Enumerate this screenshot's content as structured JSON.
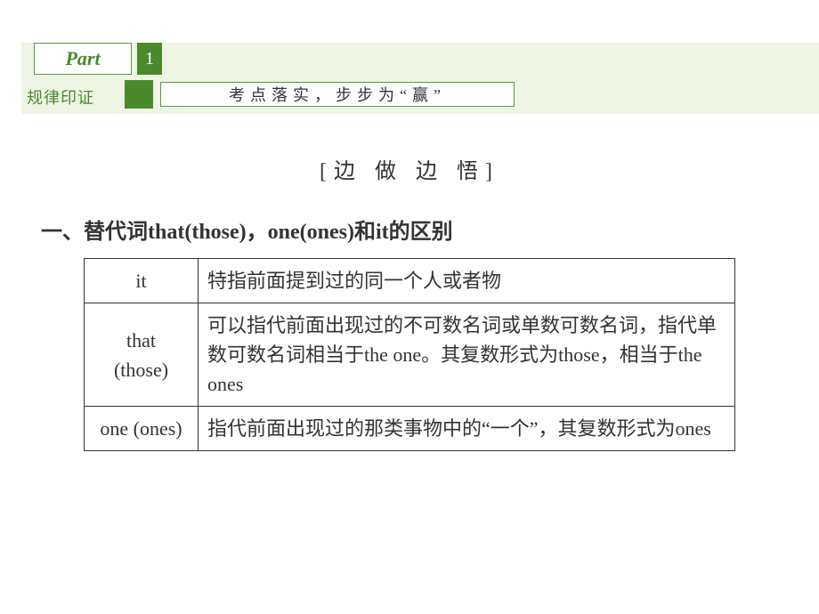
{
  "header": {
    "part_label": "Part",
    "part_number": "1",
    "sub_label": "规律印证",
    "tagline": "考点落实，步步为“赢”"
  },
  "section_title": "[边 做 边 悟]",
  "heading": "一、替代词that(those)，one(ones)和it的区别",
  "table": {
    "rows": [
      {
        "term": "it",
        "desc": "特指前面提到过的同一个人或者物"
      },
      {
        "term": "that\n(those)",
        "desc": "可以指代前面出现过的不可数名词或单数可数名词，指代单数可数名词相当于the one。其复数形式为those，相当于the ones"
      },
      {
        "term": "one (ones)",
        "desc": "指代前面出现过的那类事物中的“一个”，其复数形式为ones"
      }
    ]
  },
  "colors": {
    "green_primary": "#4a8a2c",
    "green_light_bg": "#eef5e5",
    "text": "#333333",
    "white": "#ffffff"
  }
}
